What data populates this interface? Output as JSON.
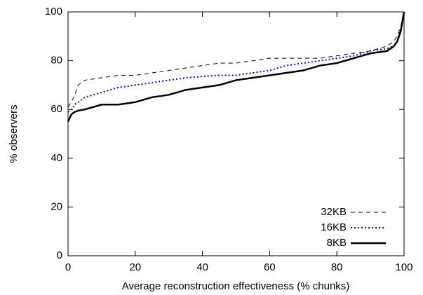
{
  "chart_data": {
    "type": "line",
    "xlabel": "Average reconstruction effectiveness (% chunks)",
    "ylabel": "% observers",
    "x": [
      0,
      1,
      2,
      3,
      5,
      10,
      15,
      20,
      25,
      30,
      35,
      40,
      45,
      50,
      55,
      60,
      65,
      70,
      75,
      80,
      85,
      90,
      95,
      97,
      98,
      99,
      100
    ],
    "series": [
      {
        "name": "32KB",
        "color": "#000000",
        "dash": "dashed",
        "width": 1,
        "values": [
          61,
          63,
          66,
          70,
          72,
          73,
          74,
          74,
          75,
          76,
          77,
          78,
          79,
          79,
          80,
          81,
          81,
          81,
          81,
          82,
          83,
          84,
          86,
          88,
          90,
          94,
          100
        ]
      },
      {
        "name": "16KB",
        "color": "#0000ff",
        "dash": "dotted",
        "width": 2,
        "values": [
          59,
          60,
          62,
          63,
          65,
          67,
          69,
          70,
          71,
          72,
          73,
          73.5,
          74,
          74,
          75,
          76,
          78,
          79,
          80,
          81,
          82,
          84,
          85,
          86,
          88,
          93,
          100
        ]
      },
      {
        "name": "8KB",
        "color": "#000000",
        "dash": "solid",
        "width": 2.5,
        "values": [
          55,
          58,
          59,
          59.5,
          60,
          62,
          62,
          63,
          65,
          66,
          68,
          69,
          70,
          72,
          73,
          74,
          75,
          76,
          78,
          79,
          81,
          83,
          84,
          86,
          88,
          92,
          100
        ]
      }
    ],
    "xlim": [
      0,
      100
    ],
    "xticks": [
      0,
      20,
      40,
      60,
      80,
      100
    ],
    "ylim": [
      0,
      100
    ],
    "yticks": [
      0,
      20,
      40,
      60,
      80,
      100
    ],
    "grid": false,
    "legend": "lower right"
  }
}
